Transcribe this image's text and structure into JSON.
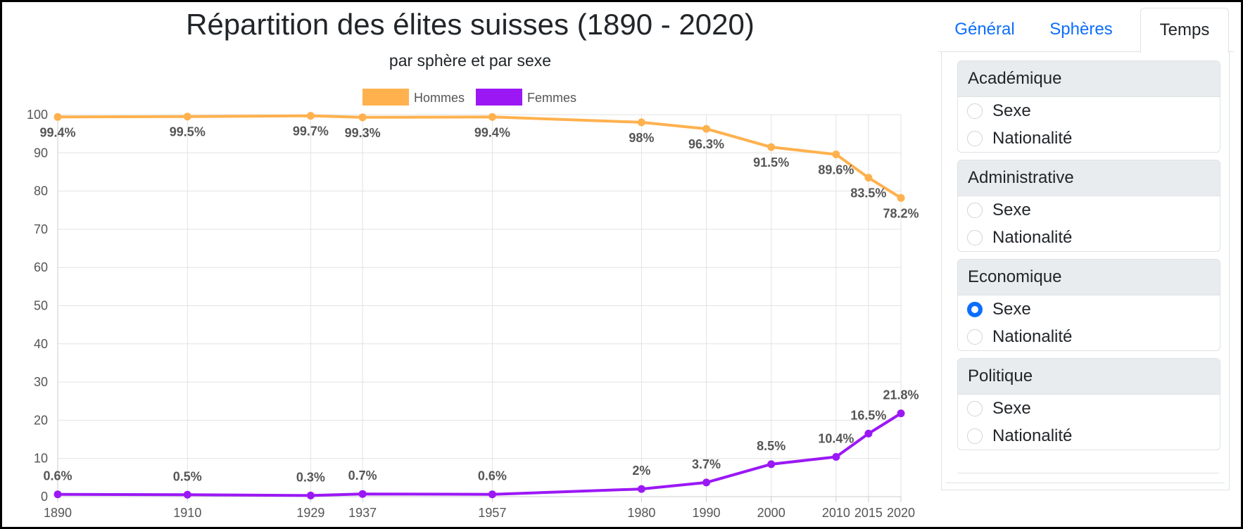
{
  "chart_data": {
    "type": "line",
    "title": "Répartition des élites suisses (1890 - 2020)",
    "subtitle": "par sphère et par sexe",
    "x": [
      1890,
      1910,
      1929,
      1937,
      1957,
      1980,
      1990,
      2000,
      2010,
      2015,
      2020
    ],
    "ylim": [
      0,
      100
    ],
    "yticks": [
      0,
      10,
      20,
      30,
      40,
      50,
      60,
      70,
      80,
      90,
      100
    ],
    "grid": true,
    "legend_position": "top",
    "series": [
      {
        "name": "Hommes",
        "color": "#ffb14e",
        "values": [
          99.4,
          99.5,
          99.7,
          99.3,
          99.4,
          98,
          96.3,
          91.5,
          89.6,
          83.5,
          78.2
        ],
        "labels": [
          "99.4%",
          "99.5%",
          "99.7%",
          "99.3%",
          "99.4%",
          "98%",
          "96.3%",
          "91.5%",
          "89.6%",
          "83.5%",
          "78.2%"
        ]
      },
      {
        "name": "Femmes",
        "color": "#9b18f5",
        "values": [
          0.6,
          0.5,
          0.3,
          0.7,
          0.6,
          2,
          3.7,
          8.5,
          10.4,
          16.5,
          21.8
        ],
        "labels": [
          "0.6%",
          "0.5%",
          "0.3%",
          "0.7%",
          "0.6%",
          "2%",
          "3.7%",
          "8.5%",
          "10.4%",
          "16.5%",
          "21.8%"
        ]
      }
    ]
  },
  "tabs": [
    {
      "label": "Général"
    },
    {
      "label": "Sphères"
    },
    {
      "label": "Temps"
    }
  ],
  "cards": [
    {
      "title": "Académique",
      "options": [
        {
          "label": "Sexe",
          "checked": false
        },
        {
          "label": "Nationalité",
          "checked": false
        }
      ]
    },
    {
      "title": "Administrative",
      "options": [
        {
          "label": "Sexe",
          "checked": false
        },
        {
          "label": "Nationalité",
          "checked": false
        }
      ]
    },
    {
      "title": "Economique",
      "options": [
        {
          "label": "Sexe",
          "checked": true
        },
        {
          "label": "Nationalité",
          "checked": false
        }
      ]
    },
    {
      "title": "Politique",
      "options": [
        {
          "label": "Sexe",
          "checked": false
        },
        {
          "label": "Nationalité",
          "checked": false
        }
      ]
    }
  ]
}
